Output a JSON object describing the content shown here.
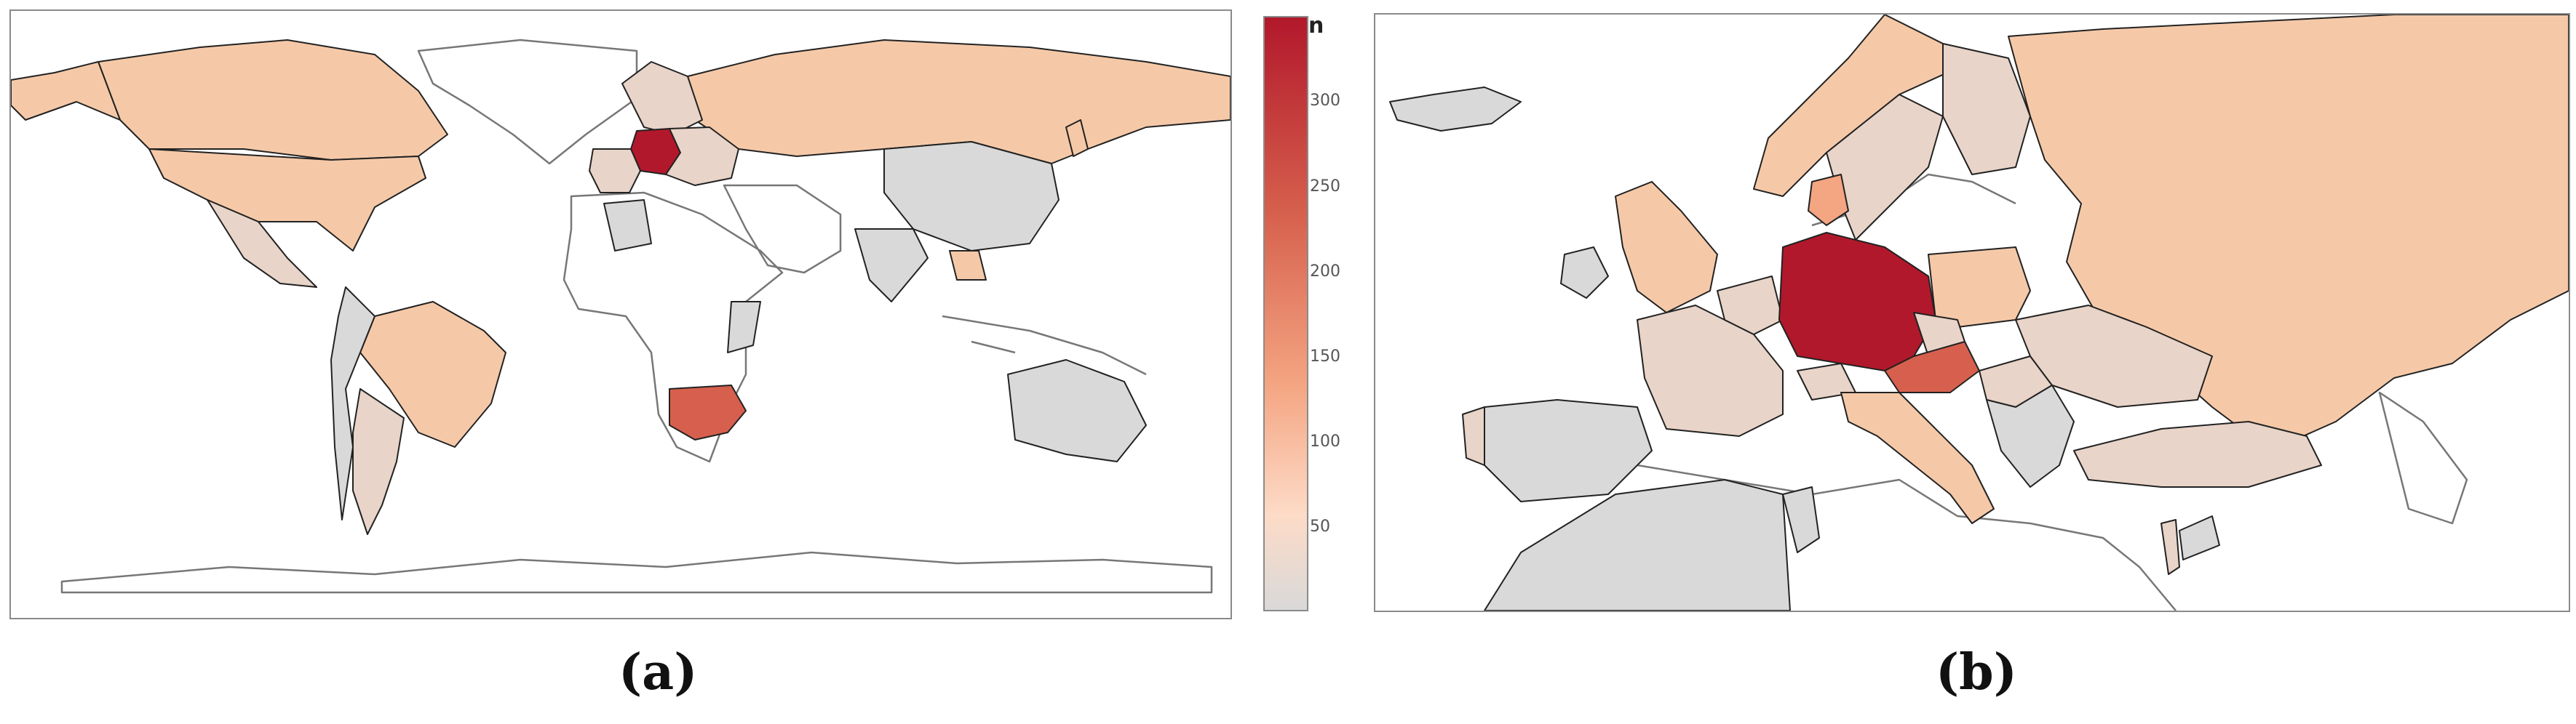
{
  "panels": {
    "a": {
      "label": "(a)"
    },
    "b": {
      "label": "(b)"
    }
  },
  "legend": {
    "title": "n",
    "ticks": [
      "300",
      "250",
      "200",
      "150",
      "100",
      "50"
    ]
  },
  "colors": {
    "lowest": "#d9d9d9",
    "low": "#e8d4c8",
    "medium_low": "#f5c9a8",
    "medium": "#f4a582",
    "high": "#d6604d",
    "highest": "#b2182b"
  }
}
